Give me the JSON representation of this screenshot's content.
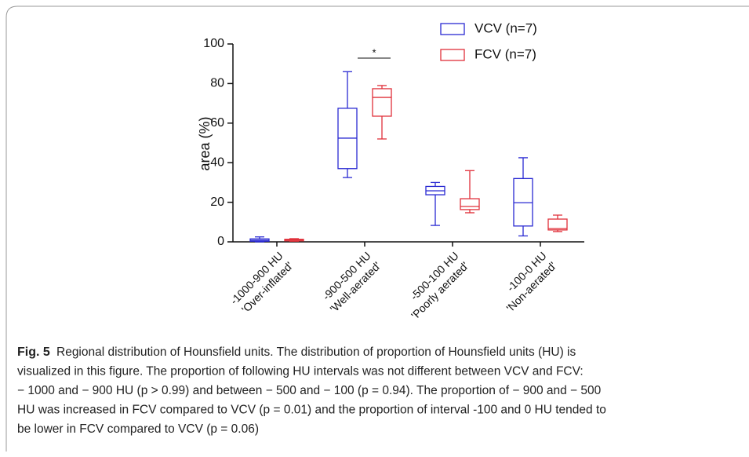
{
  "chart_data": {
    "type": "box",
    "ylabel": "area (%)",
    "ylim": [
      0,
      100
    ],
    "yticks": [
      0,
      20,
      40,
      60,
      80,
      100
    ],
    "categories": [
      [
        "-1000-900 HU",
        "'Over-inflated'"
      ],
      [
        "-900-500 HU",
        "'Well-aerated'"
      ],
      [
        "-500-100 HU",
        "'Poorly aerated'"
      ],
      [
        "-100-0 HU",
        "'Non-aerated'"
      ]
    ],
    "series": [
      {
        "name": "VCV (n=7)",
        "color": "#2a2ad2",
        "values": [
          {
            "min": 0,
            "q1": 0.3,
            "median": 0.8,
            "q3": 1.5,
            "max": 2.5
          },
          {
            "min": 32.5,
            "q1": 37,
            "median": 52.4,
            "q3": 67.5,
            "max": 86
          },
          {
            "min": 8.3,
            "q1": 23.8,
            "median": 25.8,
            "q3": 28,
            "max": 30
          },
          {
            "min": 3,
            "q1": 8,
            "median": 19.8,
            "q3": 32,
            "max": 42.5
          }
        ]
      },
      {
        "name": "FCV (n=7)",
        "color": "#e0303a",
        "values": [
          {
            "min": 0.3,
            "q1": 0.5,
            "median": 1,
            "q3": 1.3,
            "max": 1.6
          },
          {
            "min": 52,
            "q1": 63.5,
            "median": 73,
            "q3": 77.4,
            "max": 79
          },
          {
            "min": 14.7,
            "q1": 16.3,
            "median": 17.9,
            "q3": 21.8,
            "max": 36
          },
          {
            "min": 5.2,
            "q1": 6,
            "median": 6.7,
            "q3": 11.5,
            "max": 13.5
          }
        ]
      }
    ],
    "annotation": {
      "text": "*",
      "category": 1
    }
  },
  "caption": {
    "label": "Fig. 5",
    "lines": [
      " Regional distribution of Hounsfield units. The distribution of proportion of Hounsfield units (HU) is",
      "visualized in this figure. The proportion of following HU intervals was not different between VCV and FCV:",
      "− 1000 and − 900 HU (p > 0.99) and between − 500 and − 100 (p = 0.94). The proportion of − 900 and − 500",
      "HU was increased in FCV compared to VCV (p = 0.01) and the proportion of interval -100 and 0 HU tended to",
      "be lower in FCV compared to VCV (p = 0.06)"
    ]
  }
}
